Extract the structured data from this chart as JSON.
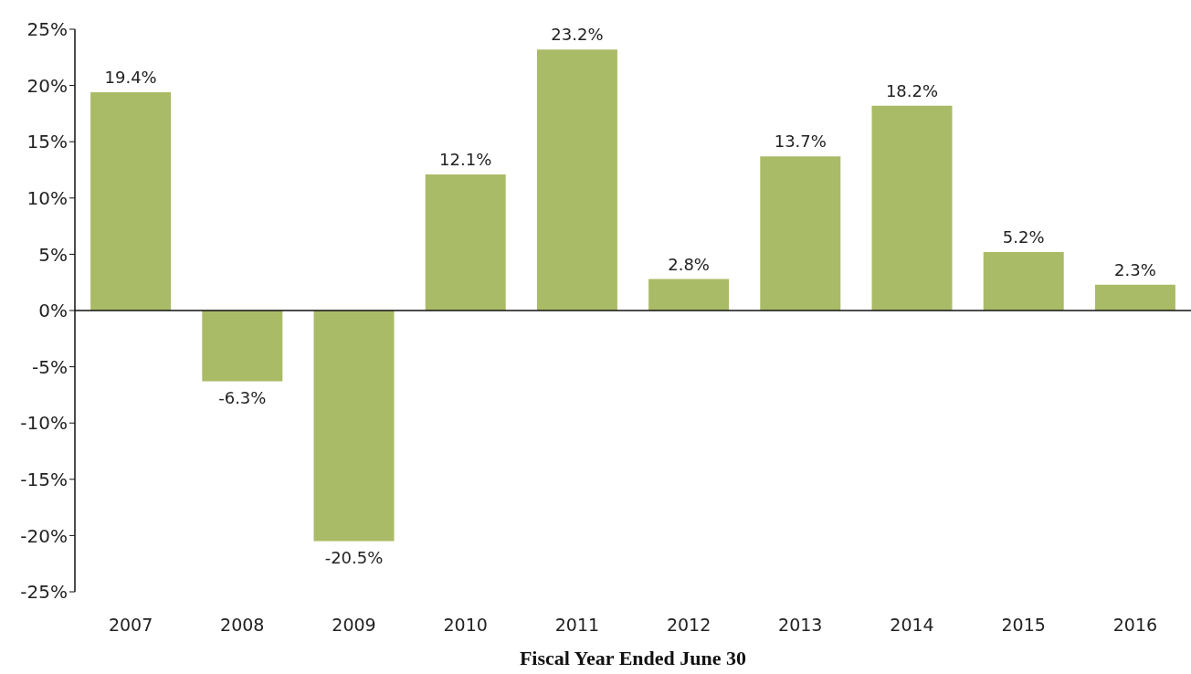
{
  "chart_data": {
    "type": "bar",
    "xlabel": "Fiscal Year Ended June 30",
    "categories": [
      "2007",
      "2008",
      "2009",
      "2010",
      "2011",
      "2012",
      "2013",
      "2014",
      "2015",
      "2016"
    ],
    "values": [
      19.4,
      -6.3,
      -20.5,
      12.1,
      23.2,
      2.8,
      13.7,
      18.2,
      5.2,
      2.3
    ],
    "value_labels": [
      "19.4%",
      "-6.3%",
      "-20.5%",
      "12.1%",
      "23.2%",
      "2.8%",
      "13.7%",
      "18.2%",
      "5.2%",
      "2.3%"
    ],
    "color": "#a9bb66",
    "ylim": [
      -25,
      25
    ],
    "yticks": [
      {
        "value": -25,
        "label": "-25%"
      },
      {
        "value": -20,
        "label": "-20%"
      },
      {
        "value": -15,
        "label": "-15%"
      },
      {
        "value": -10,
        "label": "-10%"
      },
      {
        "value": -5,
        "label": "-5%"
      },
      {
        "value": 0,
        "label": "0%"
      },
      {
        "value": 5,
        "label": "5%"
      },
      {
        "value": 10,
        "label": "10%"
      },
      {
        "value": 15,
        "label": "15%"
      },
      {
        "value": 20,
        "label": "20%"
      },
      {
        "value": 25,
        "label": "25%"
      }
    ],
    "legend": false
  }
}
